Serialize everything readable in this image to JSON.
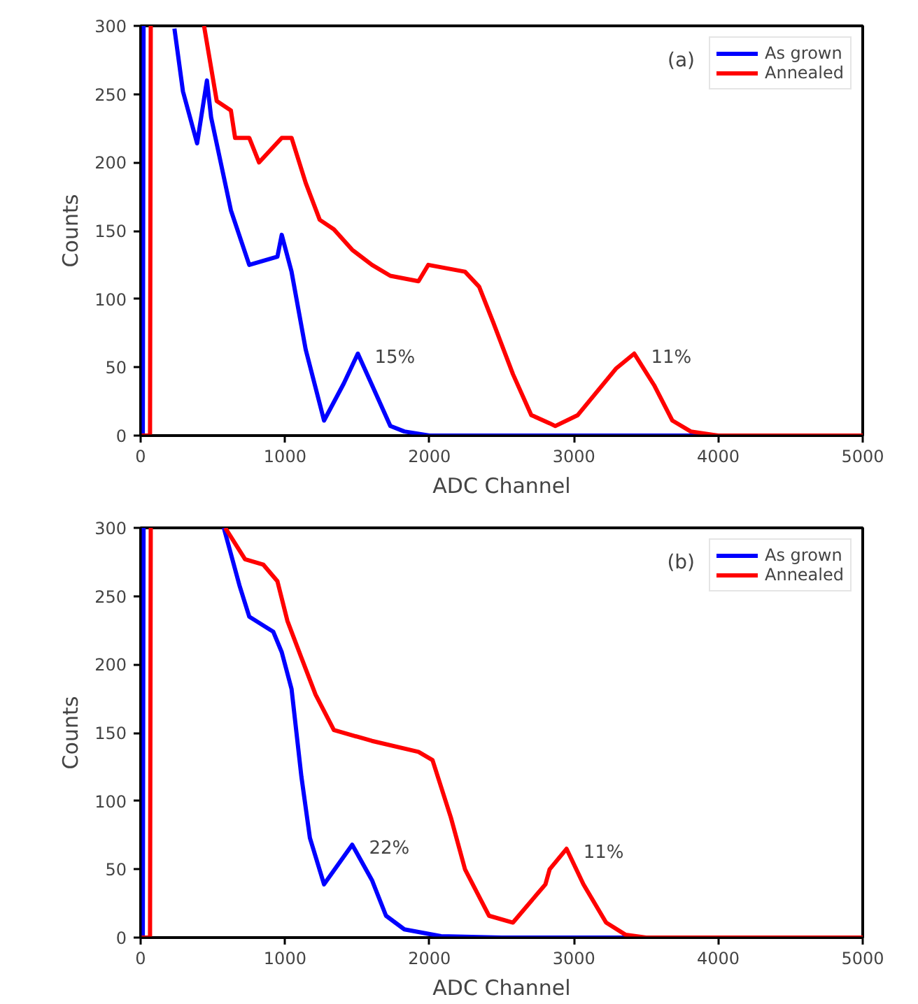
{
  "chart_data": [
    {
      "type": "line",
      "xlabel": "ADC Channel",
      "ylabel": "Counts",
      "xlim": [
        0,
        5000
      ],
      "ylim": [
        0,
        300
      ],
      "xticks": [
        0,
        1000,
        2000,
        3000,
        4000,
        5000
      ],
      "yticks": [
        0,
        50,
        100,
        150,
        200,
        250,
        300
      ],
      "grid": false,
      "legend": "top right",
      "line_style": "solid",
      "annotations": [
        "(a)",
        {
          "text": "15%",
          "x": 1504,
          "y": 60
        },
        {
          "text": "11%",
          "x": 3418,
          "y": 60
        }
      ],
      "series": [
        {
          "name": "As grown",
          "color": "#0000ff",
          "x": [
            0,
            15,
            20,
            null,
            234,
            293,
            391,
            459,
            488,
            625,
            752,
            947,
            977,
            1045,
            1143,
            1270,
            1406,
            1504,
            1602,
            1729,
            1826,
            2000,
            5000
          ],
          "values": [
            0,
            0,
            300,
            null,
            298,
            252,
            214,
            260,
            233,
            165,
            125,
            131,
            147,
            120,
            63,
            11,
            38,
            60,
            37,
            7,
            3,
            0,
            0
          ]
        },
        {
          "name": "Annealed",
          "color": "#ff0000",
          "x": [
            0,
            65,
            70,
            null,
            439,
            527,
            625,
            654,
            752,
            820,
            977,
            1045,
            1143,
            1240,
            1338,
            1465,
            1602,
            1729,
            1924,
            1992,
            2246,
            2344,
            2441,
            2578,
            2705,
            2832,
            2871,
            3027,
            3291,
            3418,
            3555,
            3682,
            3809,
            4000,
            5000
          ],
          "values": [
            0,
            0,
            300,
            null,
            300,
            245,
            238,
            218,
            218,
            200,
            218,
            218,
            185,
            158,
            151,
            136,
            125,
            117,
            113,
            125,
            120,
            109,
            83,
            45,
            15,
            9,
            7,
            15,
            49,
            60,
            37,
            11,
            3,
            0,
            0
          ]
        }
      ]
    },
    {
      "type": "line",
      "xlabel": "ADC Channel",
      "ylabel": "Counts",
      "xlim": [
        0,
        5000
      ],
      "ylim": [
        0,
        300
      ],
      "xticks": [
        0,
        1000,
        2000,
        3000,
        4000,
        5000
      ],
      "yticks": [
        0,
        50,
        100,
        150,
        200,
        250,
        300
      ],
      "grid": false,
      "legend": "top right",
      "line_style": "solid",
      "annotations": [
        "(b)",
        {
          "text": "22%",
          "x": 1465,
          "y": 68
        },
        {
          "text": "11%",
          "x": 2949,
          "y": 65
        }
      ],
      "series": [
        {
          "name": "As grown",
          "color": "#0000ff",
          "x": [
            0,
            15,
            20,
            null,
            576,
            684,
            752,
            918,
            977,
            1045,
            1113,
            1172,
            1270,
            1465,
            1602,
            1699,
            1826,
            2080,
            2500,
            5000
          ],
          "values": [
            0,
            0,
            300,
            null,
            300,
            258,
            235,
            224,
            209,
            182,
            118,
            73,
            39,
            68,
            42,
            16,
            6,
            1,
            0,
            0
          ]
        },
        {
          "name": "Annealed",
          "color": "#ff0000",
          "x": [
            0,
            65,
            70,
            null,
            586,
            723,
            850,
            947,
            1016,
            1113,
            1211,
            1338,
            1602,
            1924,
            2021,
            2148,
            2246,
            2412,
            2578,
            2803,
            2832,
            2949,
            3066,
            3223,
            3359,
            3500,
            5000
          ],
          "values": [
            0,
            0,
            300,
            null,
            300,
            277,
            273,
            261,
            232,
            205,
            178,
            152,
            144,
            136,
            130,
            88,
            50,
            16,
            11,
            39,
            50,
            65,
            39,
            11,
            2,
            0,
            0
          ]
        }
      ]
    }
  ]
}
